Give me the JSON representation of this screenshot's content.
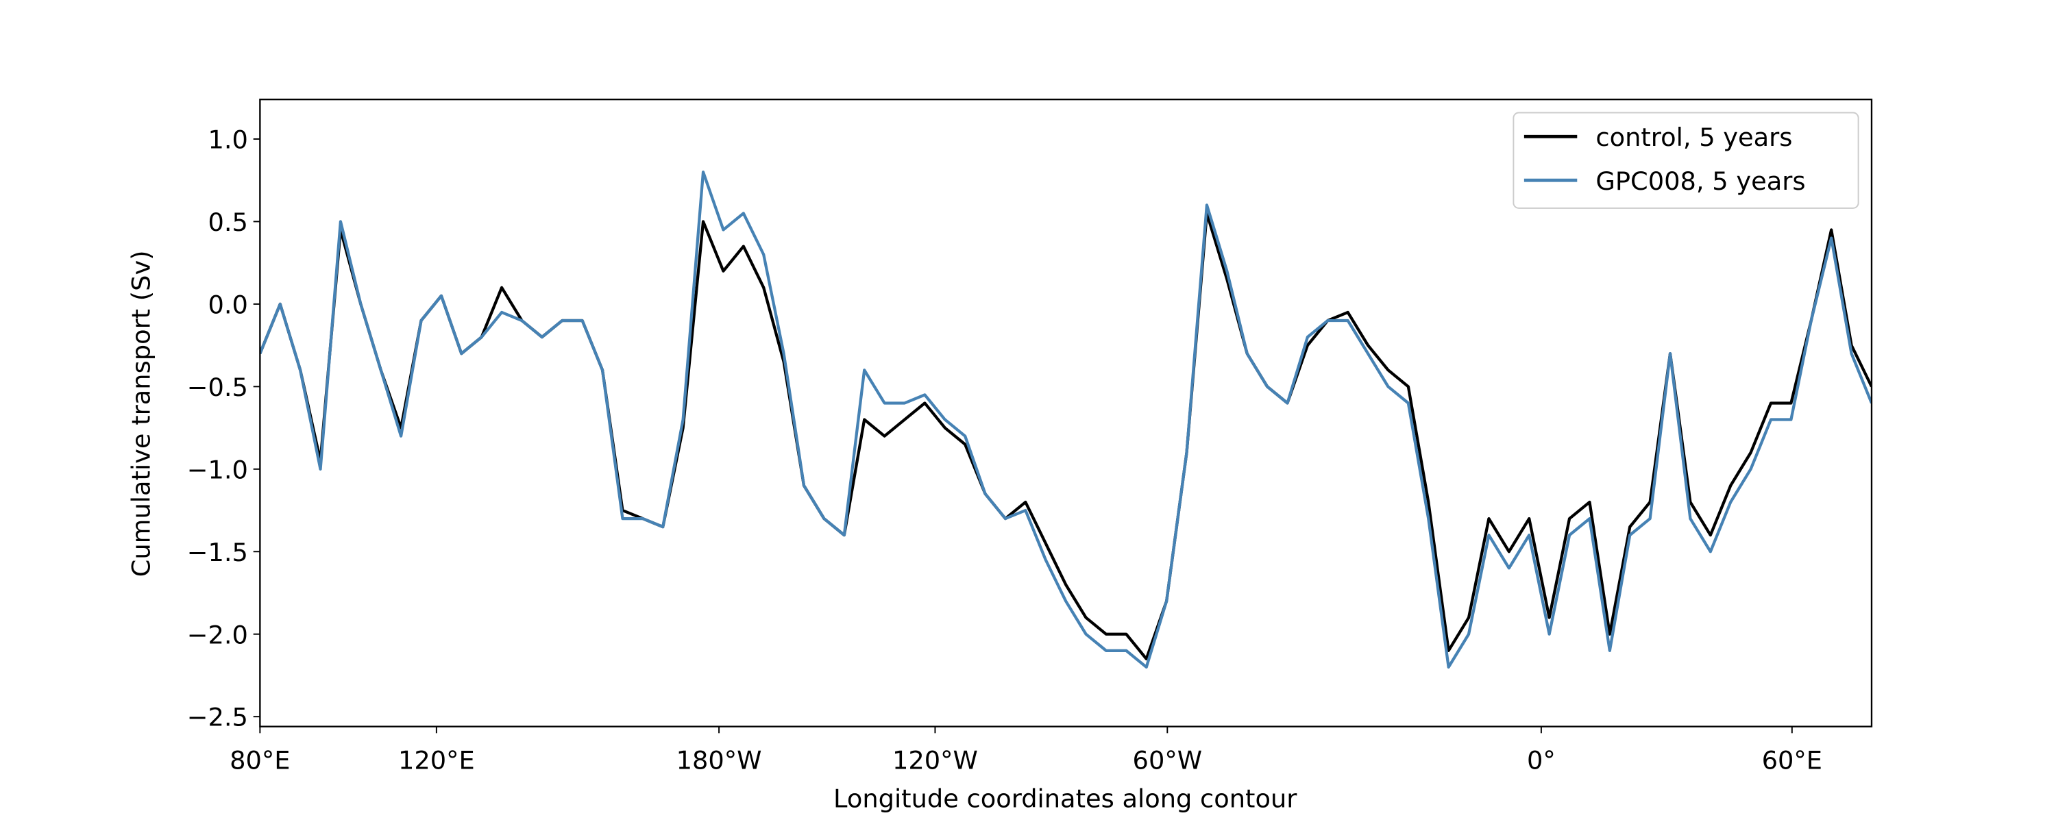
{
  "chart_data": {
    "type": "line",
    "xlabel": "Longitude coordinates along contour",
    "ylabel": "Cumulative transport (Sv)",
    "x": [
      0,
      12.5,
      25,
      37.5,
      50,
      62.5,
      75,
      87.5,
      100,
      112.5,
      125,
      137.5,
      150,
      162.5,
      175,
      187.5,
      200,
      212.5,
      225,
      237.5,
      250,
      262.5,
      275,
      287.5,
      300,
      312.5,
      325,
      337.5,
      350,
      362.5,
      375,
      387.5,
      400,
      412.5,
      425,
      437.5,
      450,
      462.5,
      475,
      487.5,
      500,
      512.5,
      525,
      537.5,
      550,
      562.5,
      575,
      587.5,
      600,
      612.5,
      625,
      637.5,
      650,
      662.5,
      675,
      687.5,
      700,
      712.5,
      725,
      737.5,
      750,
      762.5,
      775,
      787.5,
      800,
      812.5,
      825,
      837.5,
      850,
      862.5,
      875,
      887.5,
      900,
      912.5,
      925,
      937.5,
      950,
      962.5,
      975,
      987.5,
      1000
    ],
    "series": [
      {
        "name": "control, 5 years",
        "color": "#000000",
        "values": [
          -0.3,
          0.0,
          -0.4,
          -0.95,
          0.45,
          0.0,
          -0.4,
          -0.75,
          -0.1,
          0.05,
          -0.3,
          -0.2,
          0.1,
          -0.1,
          -0.2,
          -0.1,
          -0.1,
          -0.4,
          -1.25,
          -1.3,
          -1.35,
          -0.75,
          0.5,
          0.2,
          0.35,
          0.1,
          -0.35,
          -1.1,
          -1.3,
          -1.4,
          -0.7,
          -0.8,
          -0.7,
          -0.6,
          -0.75,
          -0.85,
          -1.15,
          -1.3,
          -1.2,
          -1.45,
          -1.7,
          -1.9,
          -2.0,
          -2.0,
          -2.15,
          -1.8,
          -0.9,
          0.55,
          0.15,
          -0.3,
          -0.5,
          -0.6,
          -0.25,
          -0.1,
          -0.05,
          -0.25,
          -0.4,
          -0.5,
          -1.2,
          -2.1,
          -1.9,
          -1.3,
          -1.5,
          -1.3,
          -1.9,
          -1.3,
          -1.2,
          -2.0,
          -1.35,
          -1.2,
          -0.3,
          -1.2,
          -1.4,
          -1.1,
          -0.9,
          -0.6,
          -0.6,
          -0.1,
          0.45,
          -0.25,
          -0.5
        ]
      },
      {
        "name": "GPC008, 5 years",
        "color": "#4682b4",
        "values": [
          -0.3,
          0.0,
          -0.4,
          -1.0,
          0.5,
          0.0,
          -0.4,
          -0.8,
          -0.1,
          0.05,
          -0.3,
          -0.2,
          -0.05,
          -0.1,
          -0.2,
          -0.1,
          -0.1,
          -0.4,
          -1.3,
          -1.3,
          -1.35,
          -0.7,
          0.8,
          0.45,
          0.55,
          0.3,
          -0.3,
          -1.1,
          -1.3,
          -1.4,
          -0.4,
          -0.6,
          -0.6,
          -0.55,
          -0.7,
          -0.8,
          -1.15,
          -1.3,
          -1.25,
          -1.55,
          -1.8,
          -2.0,
          -2.1,
          -2.1,
          -2.2,
          -1.8,
          -0.9,
          0.6,
          0.2,
          -0.3,
          -0.5,
          -0.6,
          -0.2,
          -0.1,
          -0.1,
          -0.3,
          -0.5,
          -0.6,
          -1.3,
          -2.2,
          -2.0,
          -1.4,
          -1.6,
          -1.4,
          -2.0,
          -1.4,
          -1.3,
          -2.1,
          -1.4,
          -1.3,
          -0.3,
          -1.3,
          -1.5,
          -1.2,
          -1.0,
          -0.7,
          -0.7,
          -0.1,
          0.4,
          -0.3,
          -0.6
        ]
      }
    ],
    "xlim": [
      0,
      1000
    ],
    "xticks": [
      {
        "value": 0,
        "label": "80°E"
      },
      {
        "value": 109.5,
        "label": "120°E"
      },
      {
        "value": 284.8,
        "label": "180°W"
      },
      {
        "value": 418.9,
        "label": "120°W"
      },
      {
        "value": 563,
        "label": "60°W"
      },
      {
        "value": 795,
        "label": "0°"
      },
      {
        "value": 950.6,
        "label": "60°E"
      }
    ],
    "ylim": [
      -2.56,
      1.24
    ],
    "yticks": [
      {
        "value": -2.5,
        "label": "−2.5"
      },
      {
        "value": -2.0,
        "label": "−2.0"
      },
      {
        "value": -1.5,
        "label": "−1.5"
      },
      {
        "value": -1.0,
        "label": "−1.0"
      },
      {
        "value": -0.5,
        "label": "−0.5"
      },
      {
        "value": 0.0,
        "label": "0.0"
      },
      {
        "value": 0.5,
        "label": "0.5"
      },
      {
        "value": 1.0,
        "label": "1.0"
      }
    ],
    "legend": "upper right"
  }
}
